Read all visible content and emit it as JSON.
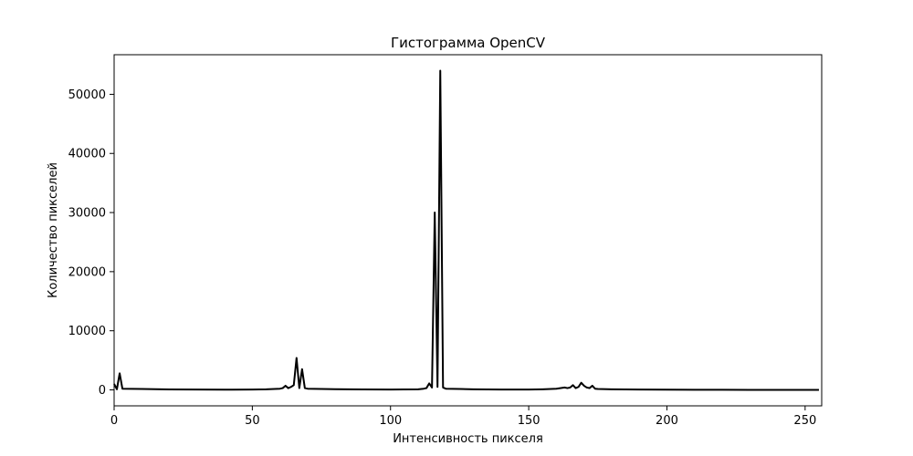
{
  "chart_data": {
    "type": "line",
    "title": "Гистограмма OpenCV",
    "xlabel": "Интенсивность пикселя",
    "ylabel": "Количество пикселей",
    "xlim": [
      0,
      256
    ],
    "ylim": [
      -2700,
      56700
    ],
    "xticks": [
      0,
      50,
      100,
      150,
      200,
      250
    ],
    "yticks": [
      0,
      10000,
      20000,
      30000,
      40000,
      50000
    ],
    "grid": false,
    "colors": {
      "line": "#000000",
      "frame": "#000000",
      "background": "#ffffff"
    },
    "series": [
      {
        "points": [
          [
            0,
            1000
          ],
          [
            1,
            100
          ],
          [
            2,
            2800
          ],
          [
            3,
            200
          ],
          [
            10,
            150
          ],
          [
            20,
            80
          ],
          [
            30,
            60
          ],
          [
            40,
            40
          ],
          [
            50,
            60
          ],
          [
            55,
            100
          ],
          [
            60,
            200
          ],
          [
            61,
            300
          ],
          [
            62,
            700
          ],
          [
            63,
            300
          ],
          [
            64,
            500
          ],
          [
            65,
            800
          ],
          [
            66,
            5400
          ],
          [
            67,
            300
          ],
          [
            68,
            3500
          ],
          [
            69,
            300
          ],
          [
            70,
            200
          ],
          [
            75,
            150
          ],
          [
            80,
            120
          ],
          [
            90,
            80
          ],
          [
            100,
            60
          ],
          [
            110,
            100
          ],
          [
            112,
            200
          ],
          [
            113,
            300
          ],
          [
            114,
            1100
          ],
          [
            115,
            400
          ],
          [
            116,
            30000
          ],
          [
            117,
            500
          ],
          [
            118,
            54000
          ],
          [
            119,
            400
          ],
          [
            120,
            200
          ],
          [
            125,
            150
          ],
          [
            130,
            100
          ],
          [
            140,
            60
          ],
          [
            150,
            50
          ],
          [
            155,
            100
          ],
          [
            160,
            200
          ],
          [
            163,
            400
          ],
          [
            164,
            300
          ],
          [
            165,
            400
          ],
          [
            166,
            800
          ],
          [
            167,
            300
          ],
          [
            168,
            500
          ],
          [
            169,
            1200
          ],
          [
            170,
            700
          ],
          [
            171,
            400
          ],
          [
            172,
            300
          ],
          [
            173,
            700
          ],
          [
            174,
            200
          ],
          [
            175,
            150
          ],
          [
            180,
            100
          ],
          [
            190,
            50
          ],
          [
            200,
            30
          ],
          [
            210,
            20
          ],
          [
            220,
            15
          ],
          [
            230,
            10
          ],
          [
            240,
            5
          ],
          [
            250,
            5
          ],
          [
            255,
            0
          ]
        ]
      }
    ]
  }
}
